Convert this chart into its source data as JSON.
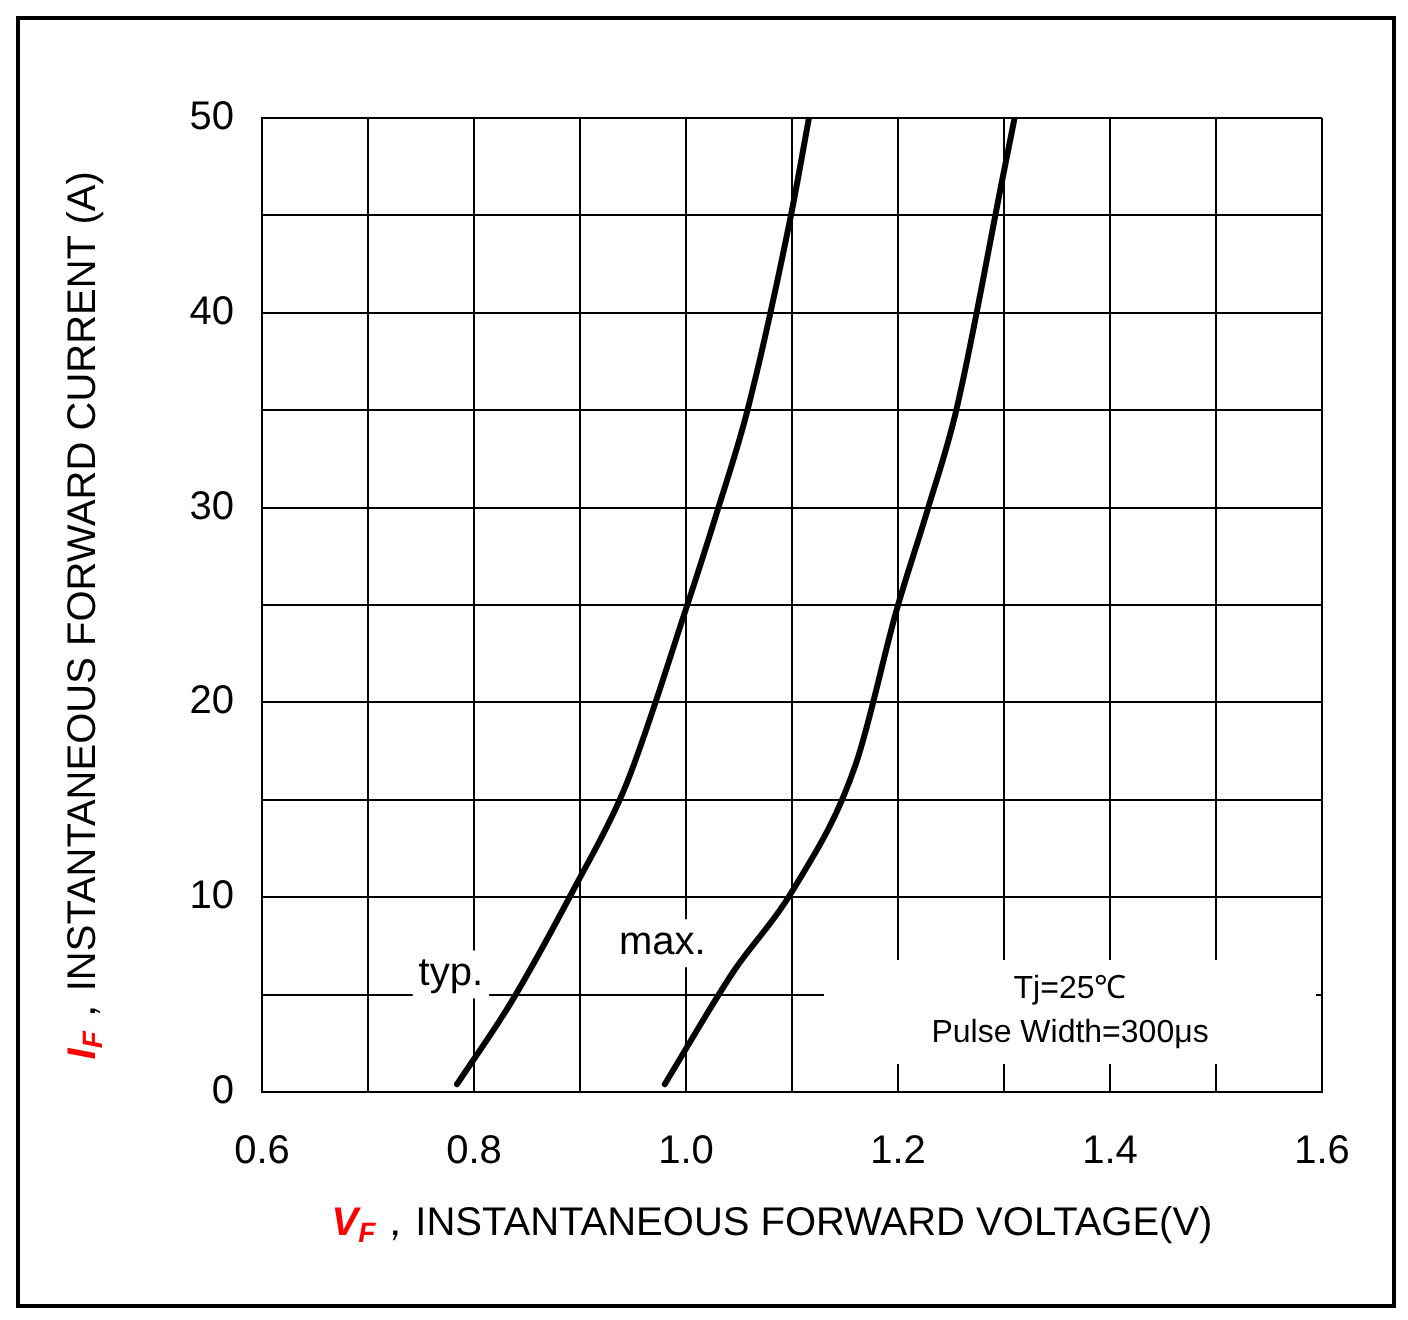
{
  "chart_data": {
    "type": "line",
    "xlabel": "V$_{F}$，INSTANTANEOUS FORWARD VOLTAGE(V)",
    "ylabel": "I$_{F}$，INSTANTANEOUS FORWARD CURRENT (A)",
    "annotations": [
      "Tj=25℃",
      "Pulse Width=300μs"
    ],
    "series": [
      {
        "name": "typ.",
        "color": "#000000",
        "x": [
          0.784,
          0.835,
          0.896,
          0.943,
          1.0,
          1.03,
          1.058,
          1.099,
          1.116
        ],
        "values": [
          0.4,
          4.6,
          10.6,
          15.7,
          24.8,
          29.9,
          35,
          45,
          50
        ]
      },
      {
        "name": "max.",
        "color": "#000000",
        "x": [
          0.98,
          1.045,
          1.099,
          1.16,
          1.199,
          1.228,
          1.255,
          1.299,
          1.31
        ],
        "values": [
          0.4,
          6.2,
          10.2,
          16.8,
          24.8,
          29.9,
          35,
          47,
          50
        ]
      }
    ],
    "xlim": [
      0.6,
      1.6
    ],
    "xticks": [
      0.6,
      {
        "value": 0.7,
        "label": null
      },
      0.8,
      {
        "value": 0.9,
        "label": null
      },
      {
        "value": 1.0,
        "label": "1.0"
      },
      {
        "value": 1.1,
        "label": null
      },
      1.2,
      {
        "value": 1.3,
        "label": null
      },
      1.4,
      {
        "value": 1.5,
        "label": null
      },
      1.6
    ],
    "ylim": [
      0,
      50
    ],
    "yticks": [
      0,
      {
        "value": 5,
        "label": null
      },
      10,
      {
        "value": 15,
        "label": null
      },
      20,
      {
        "value": 25,
        "label": null
      },
      30,
      {
        "value": 35,
        "label": null
      },
      40,
      {
        "value": 45,
        "label": null
      },
      50
    ],
    "grid": true,
    "legend": false,
    "marker": "none",
    "line_style": "solid"
  }
}
